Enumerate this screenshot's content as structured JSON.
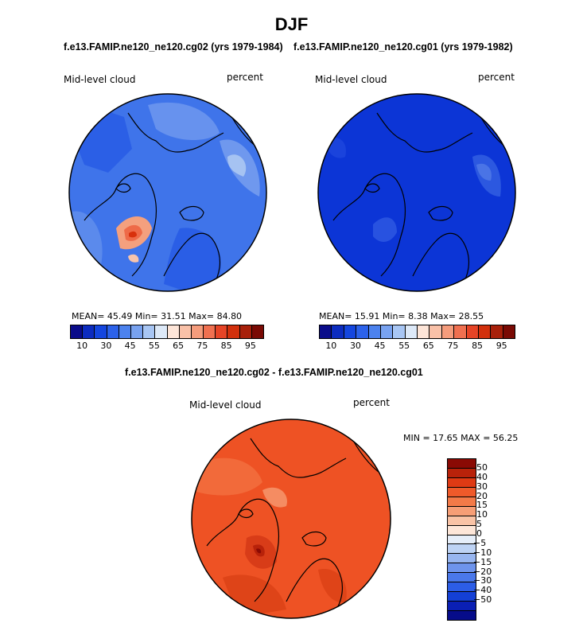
{
  "figure": {
    "title": "DJF",
    "caption_left": "f.e13.FAMIP.ne120_ne120.cg02 (yrs 1979-1984)",
    "caption_right": "f.e13.FAMIP.ne120_ne120.cg01 (yrs 1979-1982)",
    "caption_diff": "f.e13.FAMIP.ne120_ne120.cg02 - f.e13.FAMIP.ne120_ne120.cg01"
  },
  "panels": [
    {
      "variable": "Mid-level cloud",
      "units": "percent",
      "stats_text": "MEAN=  45.49  Min=  31.51  Max=  84.80",
      "mean": 45.49,
      "min": 31.51,
      "max": 84.8,
      "base_color": "#3f74ea"
    },
    {
      "variable": "Mid-level cloud",
      "units": "percent",
      "stats_text": "MEAN=  15.91  Min=   8.38  Max=  28.55",
      "mean": 15.91,
      "min": 8.38,
      "max": 28.55,
      "base_color": "#0c35d6"
    },
    {
      "variable": "Mid-level cloud",
      "units": "percent",
      "stats_text": "MIN =  17.65 MAX =  56.25",
      "min": 17.65,
      "max": 56.25,
      "base_color": "#ee5224"
    }
  ],
  "abs_colorbar": {
    "colors": [
      "#0a0c8a",
      "#0c2cc0",
      "#1446df",
      "#2c62ea",
      "#4c82ee",
      "#78a2f0",
      "#a8c6f4",
      "#dde9f8",
      "#fde5d8",
      "#f9c1a8",
      "#f59c7c",
      "#f07050",
      "#e64426",
      "#d2300c",
      "#a8200a",
      "#7a0a04"
    ],
    "tick_labels": [
      "10",
      "30",
      "45",
      "55",
      "65",
      "75",
      "85",
      "95"
    ]
  },
  "diff_colorbar": {
    "colors": [
      "#8a0a04",
      "#b8220a",
      "#de3a14",
      "#ef5a2a",
      "#f37a48",
      "#f69e76",
      "#f9c3a6",
      "#fde6d8",
      "#e6eef9",
      "#bed3f4",
      "#98b6f0",
      "#6e94ec",
      "#4a78ea",
      "#2c5de6",
      "#1440d6",
      "#0a1fb4",
      "#060c8a"
    ],
    "tick_labels": [
      "50",
      "40",
      "30",
      "20",
      "15",
      "10",
      "5",
      "0",
      "−5",
      "−10",
      "−15",
      "−20",
      "−30",
      "−40",
      "−50"
    ]
  }
}
